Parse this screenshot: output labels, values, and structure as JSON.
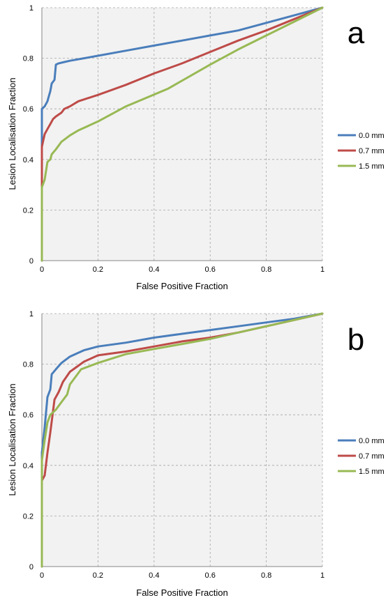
{
  "chart_data": [
    {
      "type": "line",
      "panel_label": "a",
      "xlabel": "False Positive Fraction",
      "ylabel": "Lesion Localisation Fraction",
      "xlim": [
        0,
        1
      ],
      "ylim": [
        0,
        1
      ],
      "x_ticks": [
        "0",
        "0.2",
        "0.4",
        "0.6",
        "0.8",
        "1"
      ],
      "y_ticks": [
        "0",
        "0.2",
        "0.4",
        "0.6",
        "0.8",
        "1"
      ],
      "grid": true,
      "legend_position": "right",
      "series": [
        {
          "name": "0.0 mm",
          "color": "#4a7ebb",
          "points": [
            [
              0,
              0
            ],
            [
              0,
              0.6
            ],
            [
              0.01,
              0.61
            ],
            [
              0.02,
              0.63
            ],
            [
              0.025,
              0.65
            ],
            [
              0.03,
              0.67
            ],
            [
              0.035,
              0.7
            ],
            [
              0.045,
              0.715
            ],
            [
              0.05,
              0.775
            ],
            [
              0.06,
              0.78
            ],
            [
              0.08,
              0.785
            ],
            [
              0.1,
              0.79
            ],
            [
              0.15,
              0.8
            ],
            [
              0.2,
              0.81
            ],
            [
              0.3,
              0.83
            ],
            [
              0.4,
              0.85
            ],
            [
              0.5,
              0.87
            ],
            [
              0.6,
              0.89
            ],
            [
              0.7,
              0.91
            ],
            [
              0.8,
              0.94
            ],
            [
              0.9,
              0.97
            ],
            [
              1,
              1
            ]
          ]
        },
        {
          "name": "0.7 mm",
          "color": "#be4b48",
          "points": [
            [
              0,
              0
            ],
            [
              0,
              0.45
            ],
            [
              0.01,
              0.5
            ],
            [
              0.02,
              0.52
            ],
            [
              0.03,
              0.54
            ],
            [
              0.04,
              0.56
            ],
            [
              0.05,
              0.57
            ],
            [
              0.07,
              0.585
            ],
            [
              0.08,
              0.6
            ],
            [
              0.1,
              0.61
            ],
            [
              0.13,
              0.63
            ],
            [
              0.2,
              0.655
            ],
            [
              0.3,
              0.695
            ],
            [
              0.4,
              0.74
            ],
            [
              0.5,
              0.78
            ],
            [
              0.6,
              0.825
            ],
            [
              0.7,
              0.87
            ],
            [
              0.8,
              0.91
            ],
            [
              0.9,
              0.955
            ],
            [
              1,
              1
            ]
          ]
        },
        {
          "name": "1.5 mm",
          "color": "#98b954",
          "points": [
            [
              0,
              0
            ],
            [
              0,
              0.29
            ],
            [
              0.01,
              0.32
            ],
            [
              0.02,
              0.39
            ],
            [
              0.03,
              0.4
            ],
            [
              0.035,
              0.42
            ],
            [
              0.05,
              0.44
            ],
            [
              0.07,
              0.47
            ],
            [
              0.1,
              0.495
            ],
            [
              0.13,
              0.515
            ],
            [
              0.2,
              0.55
            ],
            [
              0.3,
              0.61
            ],
            [
              0.45,
              0.68
            ],
            [
              0.6,
              0.775
            ],
            [
              0.7,
              0.835
            ],
            [
              0.8,
              0.89
            ],
            [
              0.9,
              0.945
            ],
            [
              1,
              1
            ]
          ]
        }
      ]
    },
    {
      "type": "line",
      "panel_label": "b",
      "xlabel": "False Positive Fraction",
      "ylabel": "Lesion Localisation Fraction",
      "xlim": [
        0,
        1
      ],
      "ylim": [
        0,
        1
      ],
      "x_ticks": [
        "0",
        "0.2",
        "0.4",
        "0.6",
        "0.8",
        "1"
      ],
      "y_ticks": [
        "0",
        "0.2",
        "0.4",
        "0.6",
        "0.8",
        "1"
      ],
      "grid": true,
      "legend_position": "right",
      "series": [
        {
          "name": "0.0 mm",
          "color": "#4a7ebb",
          "points": [
            [
              0,
              0
            ],
            [
              0,
              0.45
            ],
            [
              0.01,
              0.55
            ],
            [
              0.02,
              0.67
            ],
            [
              0.03,
              0.7
            ],
            [
              0.035,
              0.76
            ],
            [
              0.05,
              0.78
            ],
            [
              0.07,
              0.805
            ],
            [
              0.1,
              0.83
            ],
            [
              0.15,
              0.855
            ],
            [
              0.2,
              0.87
            ],
            [
              0.3,
              0.885
            ],
            [
              0.4,
              0.905
            ],
            [
              0.5,
              0.92
            ],
            [
              0.6,
              0.935
            ],
            [
              0.7,
              0.95
            ],
            [
              0.8,
              0.965
            ],
            [
              0.9,
              0.98
            ],
            [
              1,
              1
            ]
          ]
        },
        {
          "name": "0.7 mm",
          "color": "#be4b48",
          "points": [
            [
              0,
              0
            ],
            [
              0,
              0.34
            ],
            [
              0.01,
              0.36
            ],
            [
              0.02,
              0.45
            ],
            [
              0.03,
              0.53
            ],
            [
              0.045,
              0.66
            ],
            [
              0.06,
              0.69
            ],
            [
              0.075,
              0.73
            ],
            [
              0.1,
              0.77
            ],
            [
              0.15,
              0.81
            ],
            [
              0.2,
              0.835
            ],
            [
              0.3,
              0.85
            ],
            [
              0.4,
              0.87
            ],
            [
              0.5,
              0.89
            ],
            [
              0.6,
              0.905
            ],
            [
              0.7,
              0.925
            ],
            [
              0.8,
              0.95
            ],
            [
              0.9,
              0.975
            ],
            [
              1,
              1
            ]
          ]
        },
        {
          "name": "1.5 mm",
          "color": "#98b954",
          "points": [
            [
              0,
              0
            ],
            [
              0,
              0.42
            ],
            [
              0.01,
              0.5
            ],
            [
              0.02,
              0.57
            ],
            [
              0.03,
              0.6
            ],
            [
              0.04,
              0.61
            ],
            [
              0.05,
              0.62
            ],
            [
              0.07,
              0.65
            ],
            [
              0.09,
              0.68
            ],
            [
              0.1,
              0.72
            ],
            [
              0.14,
              0.78
            ],
            [
              0.2,
              0.805
            ],
            [
              0.3,
              0.84
            ],
            [
              0.4,
              0.86
            ],
            [
              0.5,
              0.88
            ],
            [
              0.6,
              0.9
            ],
            [
              0.7,
              0.925
            ],
            [
              0.8,
              0.95
            ],
            [
              0.9,
              0.975
            ],
            [
              1,
              1
            ]
          ]
        }
      ]
    }
  ]
}
